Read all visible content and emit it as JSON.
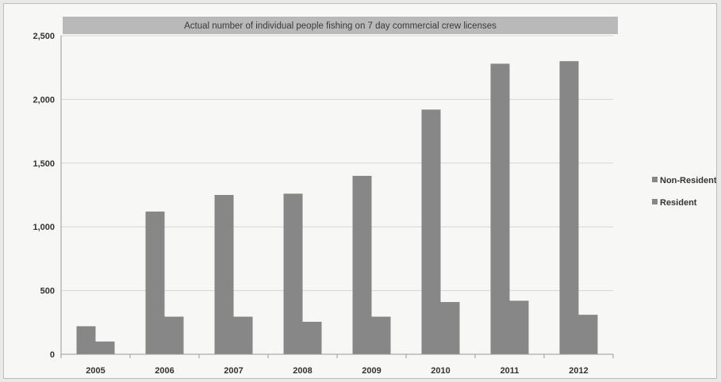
{
  "chart_data": {
    "type": "bar",
    "title": "Actual  number of individual people fishing on 7 day commercial crew licenses",
    "xlabel": "",
    "ylabel": "",
    "categories": [
      "2005",
      "2006",
      "2007",
      "2008",
      "2009",
      "2010",
      "2011",
      "2012"
    ],
    "series": [
      {
        "name": "Non-Resident",
        "values": [
          220,
          1120,
          1250,
          1260,
          1400,
          1920,
          2280,
          2300
        ]
      },
      {
        "name": "Resident",
        "values": [
          100,
          295,
          295,
          255,
          295,
          410,
          420,
          310
        ]
      }
    ],
    "ylim": [
      0,
      2500
    ],
    "yticks": [
      "0",
      "500",
      "1,000",
      "1,500",
      "2,000",
      "2,500"
    ],
    "ytick_values": [
      0,
      500,
      1000,
      1500,
      2000,
      2500
    ],
    "grid": true,
    "legend_position": "right",
    "colors": {
      "bar": "#878787",
      "title_band": "#b9b9b9",
      "grid": "#d6d6d4",
      "axis": "#9a9a98"
    }
  }
}
